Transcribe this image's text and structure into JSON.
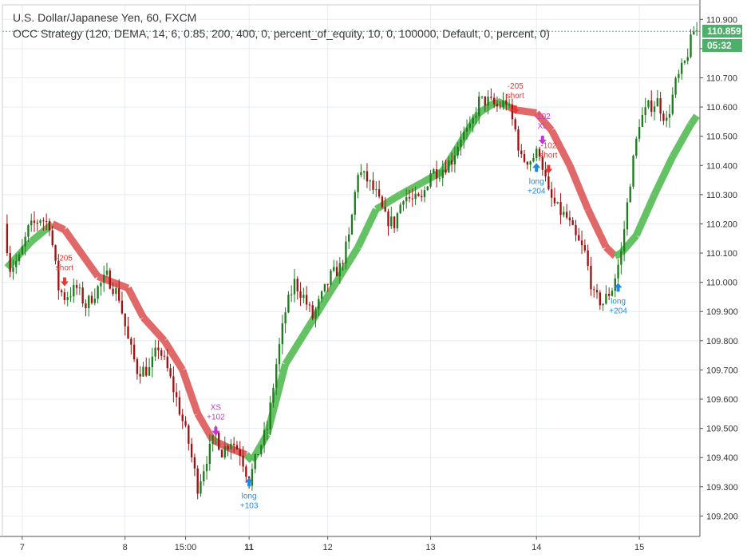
{
  "header": {
    "title": "U.S. Dollar/Japanese Yen, 60, FXCM",
    "strategy": "OCC Strategy (120, DEMA, 14, 6, 0.85, 200, 400, 0, percent_of_equity, 10, 0, 100000, Default, 0, percent, 0)"
  },
  "last_price": "110.859",
  "countdown": "05:32",
  "colors": {
    "bull": "#1e7b1e",
    "bear": "#a01212",
    "band_up": "#5cbf5c",
    "band_down": "#e06060",
    "long_marker": "#1e88e5",
    "short_marker": "#e53935",
    "exit_marker": "#c03ad0",
    "last_price": "#4caf6a"
  },
  "chart_data": {
    "type": "candlestick",
    "y_axis": {
      "range": [
        109.13,
        110.95
      ],
      "ticks": [
        "110.900",
        "110.800",
        "110.700",
        "110.600",
        "110.500",
        "110.400",
        "110.300",
        "110.200",
        "110.100",
        "110.000",
        "109.900",
        "109.800",
        "109.700",
        "109.600",
        "109.500",
        "109.400",
        "109.300",
        "109.200"
      ]
    },
    "x_axis": {
      "labels": [
        {
          "text": "7",
          "bar": 5,
          "bold": false
        },
        {
          "text": "8",
          "bar": 39,
          "bold": false
        },
        {
          "text": "15:00",
          "bar": 59,
          "bold": false
        },
        {
          "text": "11",
          "bar": 80,
          "bold": true
        },
        {
          "text": "12",
          "bar": 106,
          "bold": false
        },
        {
          "text": "13",
          "bar": 140,
          "bold": false
        },
        {
          "text": "14",
          "bar": 175,
          "bold": false
        },
        {
          "text": "15",
          "bar": 209,
          "bold": false
        }
      ]
    },
    "bar_count": 229,
    "keypoints": [
      [
        0,
        110.2
      ],
      [
        2,
        110.05
      ],
      [
        5,
        110.08
      ],
      [
        8,
        110.18
      ],
      [
        12,
        110.22
      ],
      [
        15,
        110.2
      ],
      [
        18,
        109.98
      ],
      [
        20,
        109.95
      ],
      [
        24,
        109.98
      ],
      [
        27,
        109.92
      ],
      [
        31,
        109.98
      ],
      [
        34,
        110.02
      ],
      [
        38,
        109.95
      ],
      [
        41,
        109.8
      ],
      [
        44,
        109.7
      ],
      [
        48,
        109.7
      ],
      [
        51,
        109.78
      ],
      [
        54,
        109.7
      ],
      [
        57,
        109.6
      ],
      [
        61,
        109.45
      ],
      [
        64,
        109.3
      ],
      [
        67,
        109.4
      ],
      [
        70,
        109.48
      ],
      [
        72,
        109.42
      ],
      [
        75,
        109.46
      ],
      [
        78,
        109.42
      ],
      [
        81,
        109.32
      ],
      [
        84,
        109.42
      ],
      [
        87,
        109.5
      ],
      [
        90,
        109.72
      ],
      [
        93,
        109.9
      ],
      [
        96,
        110.0
      ],
      [
        99,
        109.95
      ],
      [
        102,
        109.88
      ],
      [
        105,
        109.95
      ],
      [
        108,
        110.02
      ],
      [
        111,
        110.05
      ],
      [
        114,
        110.15
      ],
      [
        117,
        110.38
      ],
      [
        120,
        110.35
      ],
      [
        123,
        110.3
      ],
      [
        126,
        110.22
      ],
      [
        129,
        110.2
      ],
      [
        132,
        110.3
      ],
      [
        135,
        110.28
      ],
      [
        138,
        110.28
      ],
      [
        141,
        110.38
      ],
      [
        144,
        110.38
      ],
      [
        148,
        110.42
      ],
      [
        151,
        110.5
      ],
      [
        154,
        110.52
      ],
      [
        157,
        110.62
      ],
      [
        160,
        110.62
      ],
      [
        163,
        110.6
      ],
      [
        166,
        110.62
      ],
      [
        169,
        110.52
      ],
      [
        171,
        110.42
      ],
      [
        174,
        110.42
      ],
      [
        177,
        110.45
      ],
      [
        180,
        110.3
      ],
      [
        183,
        110.25
      ],
      [
        186,
        110.22
      ],
      [
        189,
        110.15
      ],
      [
        192,
        110.1
      ],
      [
        195,
        109.95
      ],
      [
        198,
        109.93
      ],
      [
        201,
        109.98
      ],
      [
        204,
        110.1
      ],
      [
        207,
        110.35
      ],
      [
        210,
        110.55
      ],
      [
        213,
        110.6
      ],
      [
        216,
        110.62
      ],
      [
        219,
        110.55
      ],
      [
        222,
        110.68
      ],
      [
        225,
        110.75
      ],
      [
        228,
        110.86
      ]
    ],
    "band_keypoints": [
      [
        0,
        110.05,
        "up"
      ],
      [
        8,
        110.14,
        "up"
      ],
      [
        15,
        110.2,
        "up"
      ],
      [
        19,
        110.18,
        "down"
      ],
      [
        30,
        110.02,
        "down"
      ],
      [
        40,
        109.98,
        "down"
      ],
      [
        45,
        109.88,
        "down"
      ],
      [
        52,
        109.8,
        "down"
      ],
      [
        58,
        109.7,
        "down"
      ],
      [
        63,
        109.55,
        "down"
      ],
      [
        68,
        109.46,
        "down"
      ],
      [
        74,
        109.43,
        "down"
      ],
      [
        79,
        109.41,
        "down"
      ],
      [
        81,
        109.39,
        "up"
      ],
      [
        86,
        109.48,
        "up"
      ],
      [
        92,
        109.72,
        "up"
      ],
      [
        98,
        109.82,
        "up"
      ],
      [
        104,
        109.92,
        "up"
      ],
      [
        110,
        110.02,
        "up"
      ],
      [
        116,
        110.12,
        "up"
      ],
      [
        122,
        110.25,
        "up"
      ],
      [
        130,
        110.3,
        "up"
      ],
      [
        137,
        110.34,
        "up"
      ],
      [
        144,
        110.38,
        "up"
      ],
      [
        150,
        110.48,
        "up"
      ],
      [
        156,
        110.58,
        "up"
      ],
      [
        162,
        110.62,
        "up"
      ],
      [
        166,
        110.6,
        "up"
      ],
      [
        168,
        110.59,
        "down"
      ],
      [
        175,
        110.58,
        "down"
      ],
      [
        180,
        110.52,
        "down"
      ],
      [
        186,
        110.4,
        "down"
      ],
      [
        192,
        110.25,
        "down"
      ],
      [
        198,
        110.12,
        "down"
      ],
      [
        201,
        110.09,
        "down"
      ],
      [
        203,
        110.1,
        "up"
      ],
      [
        208,
        110.16,
        "up"
      ],
      [
        214,
        110.3,
        "up"
      ],
      [
        220,
        110.43,
        "up"
      ],
      [
        226,
        110.54,
        "up"
      ],
      [
        228,
        110.57,
        "up"
      ]
    ],
    "markers": [
      {
        "type": "short",
        "bar": 19,
        "lines": [
          "-205",
          "short"
        ]
      },
      {
        "type": "exit",
        "bar": 69,
        "lines": [
          "XS",
          "+102"
        ]
      },
      {
        "type": "long",
        "bar": 80,
        "lines": [
          "long",
          "+103"
        ]
      },
      {
        "type": "short",
        "bar": 168,
        "lines": [
          "-205",
          "short"
        ]
      },
      {
        "type": "exit",
        "bar": 177,
        "lines": [
          "-102",
          "XL"
        ]
      },
      {
        "type": "long",
        "bar": 175,
        "lines": [
          "long",
          "+204"
        ]
      },
      {
        "type": "short",
        "bar": 179,
        "lines": [
          "-102",
          "short"
        ]
      },
      {
        "type": "long",
        "bar": 202,
        "lines": [
          "long",
          "+204"
        ]
      }
    ]
  }
}
